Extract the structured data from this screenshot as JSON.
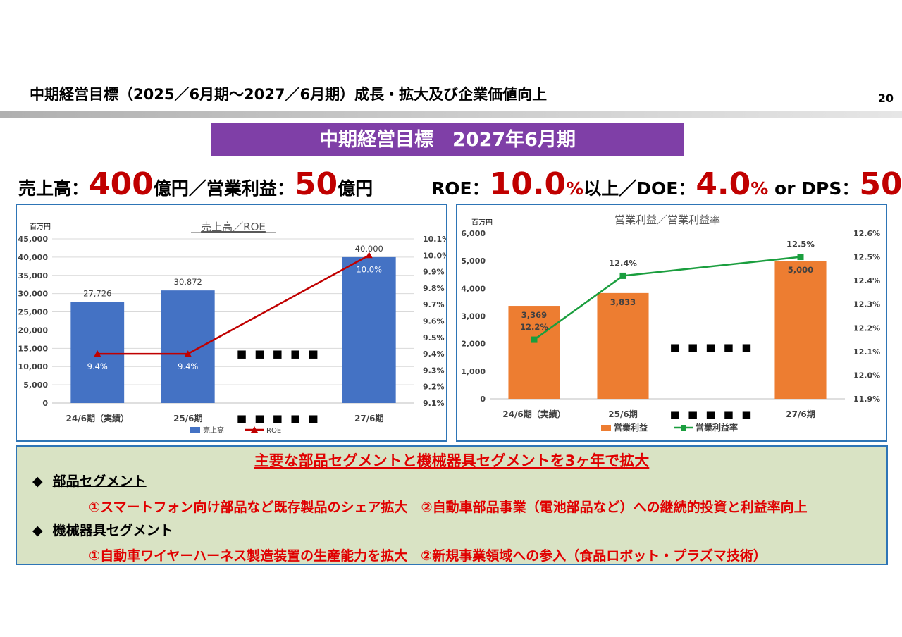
{
  "page": {
    "title": "中期経営目標（2025／6月期～2027／6月期）成長・拡大及び企業価値向上",
    "page_number": "20"
  },
  "banner": {
    "text": "中期経営目標　2027年6月期"
  },
  "targets": {
    "left": {
      "label1": "売上高：",
      "value1": "400",
      "unit1": "億円／営業利益：",
      "value2": "50",
      "unit2": "億円"
    },
    "right": {
      "label1": "ROE：",
      "value1": "10.0",
      "pct1": "%",
      "text1": "以上／DOE：",
      "value2": "4.0",
      "pct2": "%",
      "text2": " or DPS：",
      "value3": "50",
      "pct3": "%"
    }
  },
  "chart_data": [
    {
      "type": "bar",
      "title": "売上高／ROE",
      "unit_label": "百万円",
      "categories": [
        "24/6期（実績）",
        "25/6期",
        "・・・・・",
        "27/6期"
      ],
      "series": [
        {
          "name": "売上高",
          "type": "bar",
          "axis": "left",
          "values": [
            27726,
            30872,
            null,
            40000
          ],
          "labels": [
            "27,726",
            "30,872",
            "",
            "40,000"
          ],
          "color": "#4472c4"
        },
        {
          "name": "ROE",
          "type": "line",
          "axis": "right",
          "values": [
            9.4,
            9.4,
            null,
            10.0
          ],
          "labels": [
            "9.4%",
            "9.4%",
            "",
            "10.0%"
          ],
          "color": "#c00000"
        }
      ],
      "left_axis": {
        "min": 0,
        "max": 45000,
        "ticks": [
          "0",
          "5,000",
          "10,000",
          "15,000",
          "20,000",
          "25,000",
          "30,000",
          "35,000",
          "40,000",
          "45,000"
        ]
      },
      "right_axis": {
        "min": 9.1,
        "max": 10.1,
        "ticks": [
          "9.1%",
          "9.2%",
          "9.3%",
          "9.4%",
          "9.5%",
          "9.6%",
          "9.7%",
          "9.8%",
          "9.9%",
          "10.0%",
          "10.1%"
        ]
      },
      "legend": "bottom",
      "grid": true,
      "placeholder_dots": "■ ■ ■ ■ ■"
    },
    {
      "type": "bar",
      "title": "営業利益／営業利益率",
      "unit_label": "百万円",
      "categories": [
        "24/6期（実績）",
        "25/6期",
        "・・・・・",
        "27/6期"
      ],
      "series": [
        {
          "name": "営業利益",
          "type": "bar",
          "axis": "left",
          "values": [
            3369,
            3833,
            null,
            5000
          ],
          "labels": [
            "3,369",
            "3,833",
            "",
            "5,000"
          ],
          "color": "#ed7d31"
        },
        {
          "name": "営業利益率",
          "type": "line",
          "axis": "right",
          "values": [
            12.15,
            12.42,
            null,
            12.5
          ],
          "labels": [
            "12.2%",
            "12.4%",
            "",
            "12.5%"
          ],
          "color": "#1a9e3e"
        }
      ],
      "left_axis": {
        "min": 0,
        "max": 6000,
        "ticks": [
          "0",
          "1,000",
          "2,000",
          "3,000",
          "4,000",
          "5,000",
          "6,000"
        ]
      },
      "right_axis": {
        "min": 11.9,
        "max": 12.6,
        "ticks": [
          "11.9%",
          "12.0%",
          "12.1%",
          "12.2%",
          "12.3%",
          "12.4%",
          "12.5%",
          "12.6%"
        ]
      },
      "legend": "bottom",
      "grid": false,
      "placeholder_dots": "■ ■ ■ ■ ■"
    }
  ],
  "segments": {
    "heading": "主要な部品セグメントと機械器具セグメントを3ヶ年で拡大",
    "items": [
      {
        "bullet": "◆",
        "label": "部品セグメント",
        "detail": "①スマートフォン向け部品など既存製品のシェア拡大　②自動車部品事業（電池部品など）への継続的投資と利益率向上"
      },
      {
        "bullet": "◆",
        "label": "機械器具セグメント",
        "detail": "①自動車ワイヤーハーネス製造装置の生産能力を拡大　②新規事業領域への参入（食品ロボット・プラズマ技術）"
      }
    ]
  }
}
